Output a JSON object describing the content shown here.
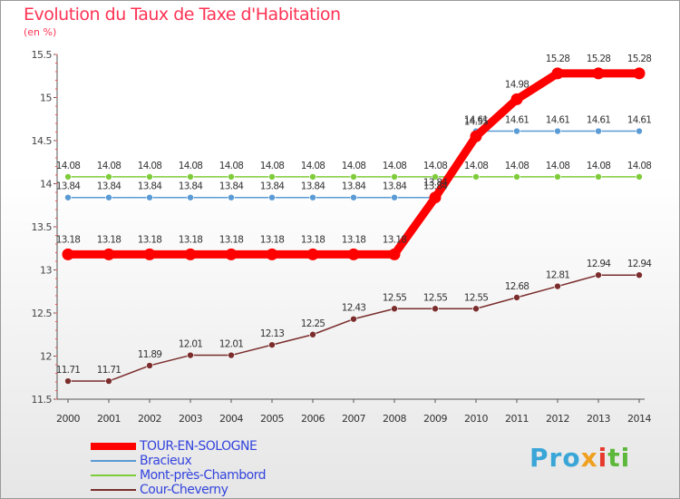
{
  "header": {
    "title": "Evolution du Taux de Taxe d'Habitation",
    "unit": "(en %)"
  },
  "logo": {
    "part1": "Pro",
    "part2": "x",
    "part3": "i",
    "part4": "ti"
  },
  "chart_data": {
    "type": "line",
    "title": "Evolution du Taux de Taxe d'Habitation",
    "ylabel": "(en %)",
    "xlabel": "",
    "ylim": [
      11.5,
      15.5
    ],
    "yticks": [
      "11.5",
      "12",
      "12.5",
      "13",
      "13.5",
      "14",
      "14.5",
      "15",
      "15.5"
    ],
    "x": [
      "2000",
      "2001",
      "2002",
      "2003",
      "2004",
      "2005",
      "2006",
      "2007",
      "2008",
      "2009",
      "2010",
      "2011",
      "2012",
      "2013",
      "2014"
    ],
    "grid": false,
    "legend_position": "bottom-left",
    "series": [
      {
        "name": "TOUR-EN-SOLOGNE",
        "color": "#ff0000",
        "values": [
          13.18,
          13.18,
          13.18,
          13.18,
          13.18,
          13.18,
          13.18,
          13.18,
          13.18,
          13.84,
          14.55,
          14.98,
          15.28,
          15.28,
          15.28
        ],
        "labels": [
          "13.18",
          "13.18",
          "13.18",
          "13.18",
          "13.18",
          "13.18",
          "13.18",
          "13.18",
          "13.18",
          "13.84",
          "14.55",
          "14.98",
          "15.28",
          "15.28",
          "15.28"
        ]
      },
      {
        "name": "Bracieux",
        "color": "#5b9bd5",
        "values": [
          13.84,
          13.84,
          13.84,
          13.84,
          13.84,
          13.84,
          13.84,
          13.84,
          13.84,
          13.84,
          14.61,
          14.61,
          14.61,
          14.61,
          14.61
        ],
        "labels": [
          "13.84",
          "13.84",
          "13.84",
          "13.84",
          "13.84",
          "13.84",
          "13.84",
          "13.84",
          "13.84",
          "13.84",
          "14.61",
          "14.61",
          "14.61",
          "14.61",
          "14.61"
        ]
      },
      {
        "name": "Mont-près-Chambord",
        "color": "#7fcc3a",
        "values": [
          14.08,
          14.08,
          14.08,
          14.08,
          14.08,
          14.08,
          14.08,
          14.08,
          14.08,
          14.08,
          14.08,
          14.08,
          14.08,
          14.08,
          14.08
        ],
        "labels": [
          "14.08",
          "14.08",
          "14.08",
          "14.08",
          "14.08",
          "14.08",
          "14.08",
          "14.08",
          "14.08",
          "14.08",
          "14.08",
          "14.08",
          "14.08",
          "14.08",
          "14.08"
        ]
      },
      {
        "name": "Cour-Cheverny",
        "color": "#7b2d2d",
        "values": [
          11.71,
          11.71,
          11.89,
          12.01,
          12.01,
          12.13,
          12.25,
          12.43,
          12.55,
          12.55,
          12.55,
          12.68,
          12.81,
          12.94,
          12.94
        ],
        "labels": [
          "11.71",
          "11.71",
          "11.89",
          "12.01",
          "12.01",
          "12.13",
          "12.25",
          "12.43",
          "12.55",
          "12.55",
          "12.55",
          "12.68",
          "12.81",
          "12.94",
          "12.94"
        ]
      }
    ]
  }
}
